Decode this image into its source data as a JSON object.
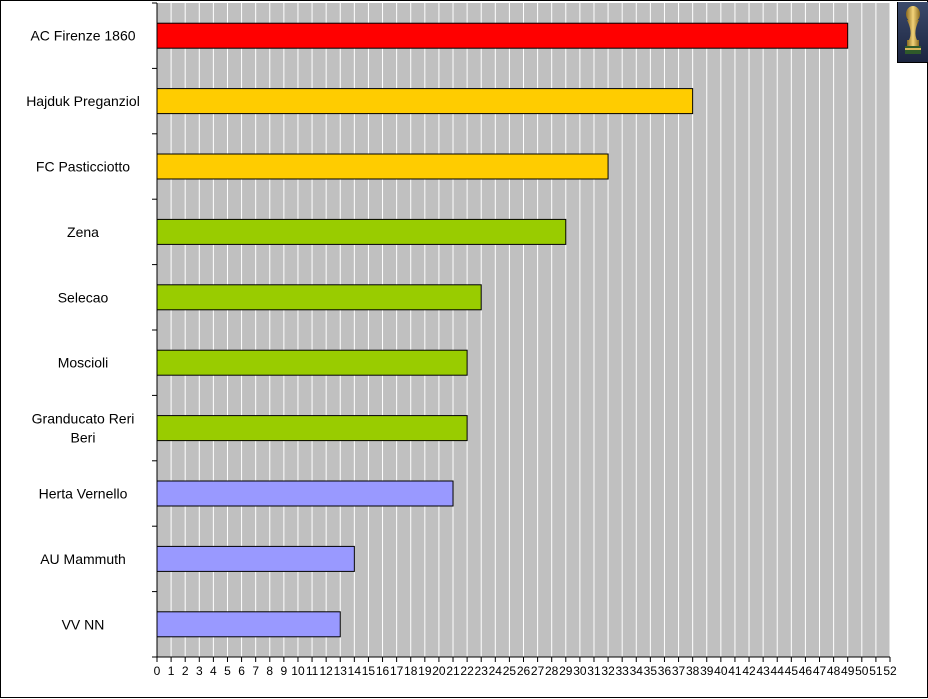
{
  "chart_data": {
    "type": "bar",
    "orientation": "horizontal",
    "categories": [
      "AC Firenze 1860",
      "Hajduk Preganziol",
      "FC Pasticciotto",
      "Zena",
      "Selecao",
      "Moscioli",
      "Granducato Reri Beri",
      "Herta Vernello",
      "AU Mammuth",
      "VV NN"
    ],
    "values": [
      49,
      38,
      32,
      29,
      23,
      22,
      22,
      21,
      14,
      13
    ],
    "colors": [
      "#ff0000",
      "#ffcc00",
      "#ffcc00",
      "#99cc00",
      "#99cc00",
      "#99cc00",
      "#99cc00",
      "#9999ff",
      "#9999ff",
      "#9999ff"
    ],
    "x_ticks": [
      "0",
      "1",
      "2",
      "3",
      "4",
      "5",
      "6",
      "7",
      "8",
      "9",
      "10",
      "11",
      "12",
      "13",
      "14",
      "15",
      "16",
      "17",
      "18",
      "19",
      "20",
      "21",
      "22",
      "23",
      "24",
      "25",
      "26",
      "27",
      "28",
      "29",
      "30",
      "31",
      "32",
      "33",
      "34",
      "35",
      "36",
      "37",
      "38",
      "39",
      "40",
      "41",
      "42",
      "43",
      "44",
      "45",
      "46",
      "47",
      "48",
      "49",
      "50",
      "51",
      "52"
    ],
    "xlim": [
      0,
      52
    ],
    "grid": true,
    "plot_background": "#c0c0c0",
    "gridline_color": "#ffffff",
    "title": "",
    "xlabel": "",
    "ylabel": ""
  },
  "logo": {
    "icon": "trophy-icon"
  }
}
